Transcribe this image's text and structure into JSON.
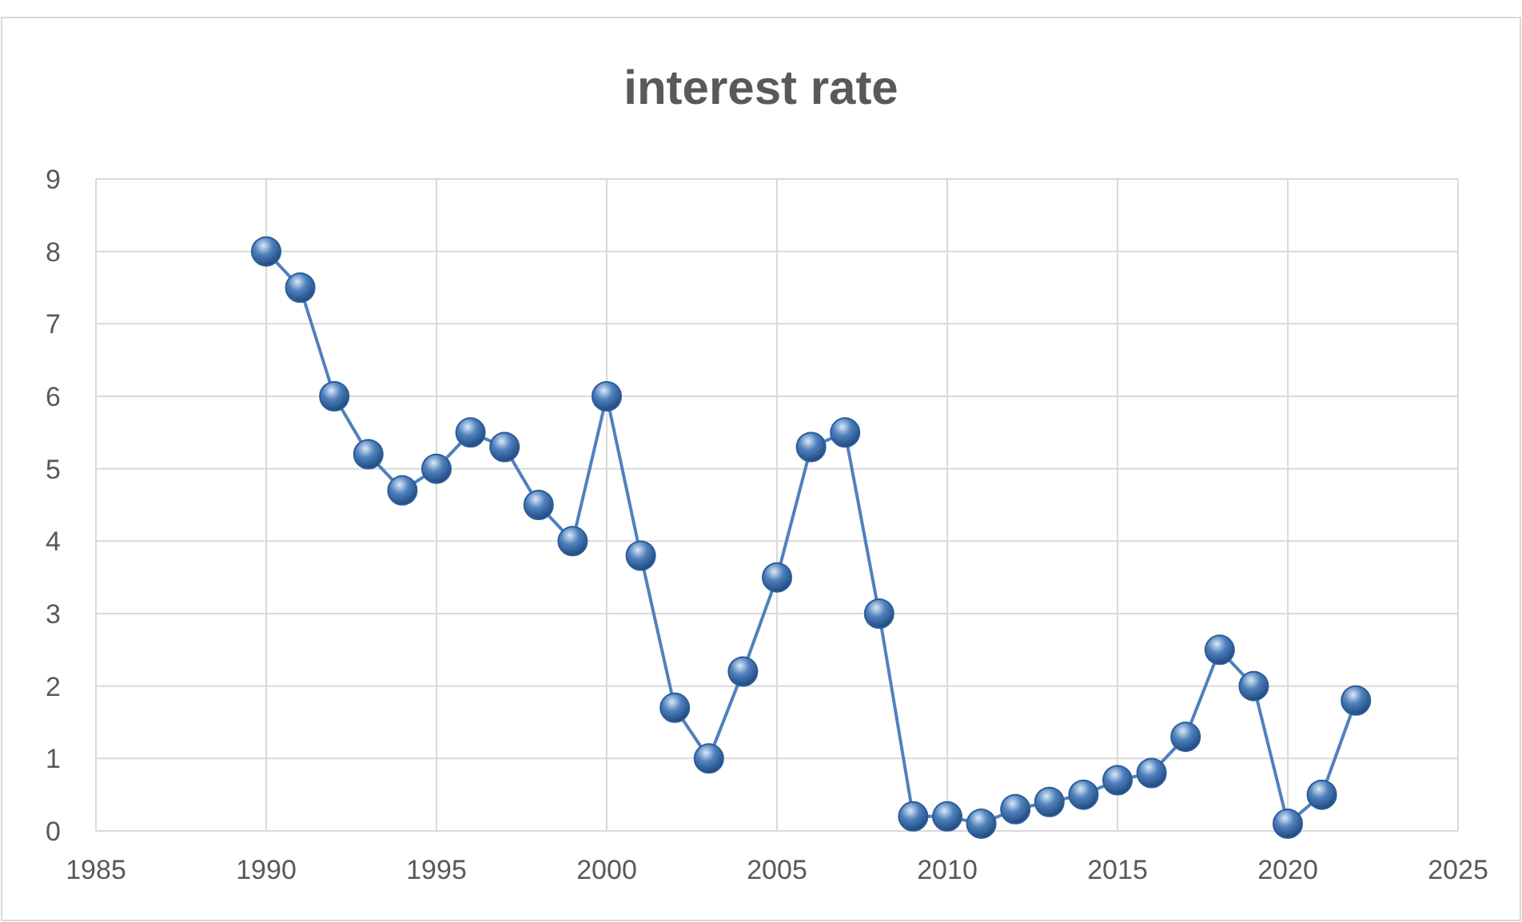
{
  "chart_data": {
    "type": "line",
    "title": "interest rate",
    "x": [
      1990,
      1991,
      1992,
      1993,
      1994,
      1995,
      1996,
      1997,
      1998,
      1999,
      2000,
      2001,
      2002,
      2003,
      2004,
      2005,
      2006,
      2007,
      2008,
      2009,
      2010,
      2011,
      2012,
      2013,
      2014,
      2015,
      2016,
      2017,
      2018,
      2019,
      2020,
      2021,
      2022
    ],
    "series": [
      {
        "color": "#4f81bd",
        "values": [
          8,
          7.5,
          6,
          5.2,
          4.7,
          5,
          5.5,
          5.3,
          4.5,
          4,
          6,
          3.8,
          1.7,
          1,
          2.2,
          3.5,
          5.3,
          5.5,
          3,
          0.2,
          0.2,
          0.1,
          0.3,
          0.4,
          0.5,
          0.7,
          0.8,
          1.3,
          2.5,
          2,
          0.1,
          0.5,
          1.8
        ]
      }
    ],
    "xlim": [
      1985,
      2025
    ],
    "xticks": [
      1985,
      1990,
      1995,
      2000,
      2005,
      2010,
      2015,
      2020,
      2025
    ],
    "ylim": [
      0,
      9
    ],
    "yticks": [
      0,
      1,
      2,
      3,
      4,
      5,
      6,
      7,
      8,
      9
    ],
    "grid": true,
    "marker": "circle",
    "line_style": "solid"
  }
}
